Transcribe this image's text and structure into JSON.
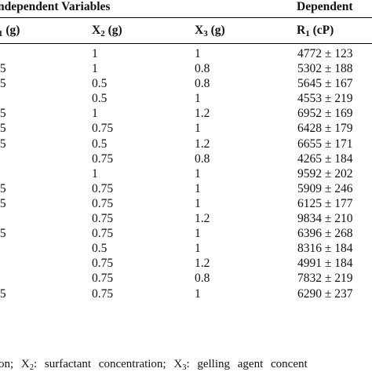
{
  "table": {
    "group_headers": {
      "independent": "ndependent Variables",
      "dependent": "Dependent"
    },
    "columns": {
      "x1": {
        "prefix": "",
        "sub": "1",
        "suffix": " (g)"
      },
      "x2": {
        "prefix": "X",
        "sub": "2",
        "suffix": " (g)"
      },
      "x3": {
        "prefix": "X",
        "sub": "3",
        "suffix": " (g)"
      },
      "r1": {
        "prefix": "R",
        "sub": "1",
        "suffix": " (cP)"
      }
    },
    "rows": [
      [
        "",
        "1",
        "1",
        "4772 ± 123"
      ],
      [
        ".5",
        "1",
        "0.8",
        "5302 ± 188"
      ],
      [
        ".5",
        "0.5",
        "0.8",
        "5645 ± 167"
      ],
      [
        "",
        "0.5",
        "1",
        "4553 ± 219"
      ],
      [
        ".5",
        "1",
        "1.2",
        "6952 ± 169"
      ],
      [
        ".5",
        "0.75",
        "1",
        "6428 ± 179"
      ],
      [
        ".5",
        "0.5",
        "1.2",
        "6655 ± 171"
      ],
      [
        "",
        "0.75",
        "0.8",
        "4265 ± 184"
      ],
      [
        "",
        "1",
        "1",
        "9592 ± 202"
      ],
      [
        ".5",
        "0.75",
        "1",
        "5909 ± 246"
      ],
      [
        ".5",
        "0.75",
        "1",
        "6125 ± 177"
      ],
      [
        "",
        "0.75",
        "1.2",
        "9834 ± 210"
      ],
      [
        ".5",
        "0.75",
        "1",
        "6396 ± 268"
      ],
      [
        "",
        "0.5",
        "1",
        "8316 ± 184"
      ],
      [
        "",
        "0.75",
        "1.2",
        "4991 ± 184"
      ],
      [
        "",
        "0.75",
        "0.8",
        "7832 ± 219"
      ],
      [
        ".5",
        "0.75",
        "1",
        "6290 ± 237"
      ]
    ]
  },
  "footnote": {
    "part1": "on;  X",
    "sub1": "2",
    "part2": ":  surfactant  concentration;  X",
    "sub2": "3",
    "part3": ":  gelling  agent  concent"
  }
}
